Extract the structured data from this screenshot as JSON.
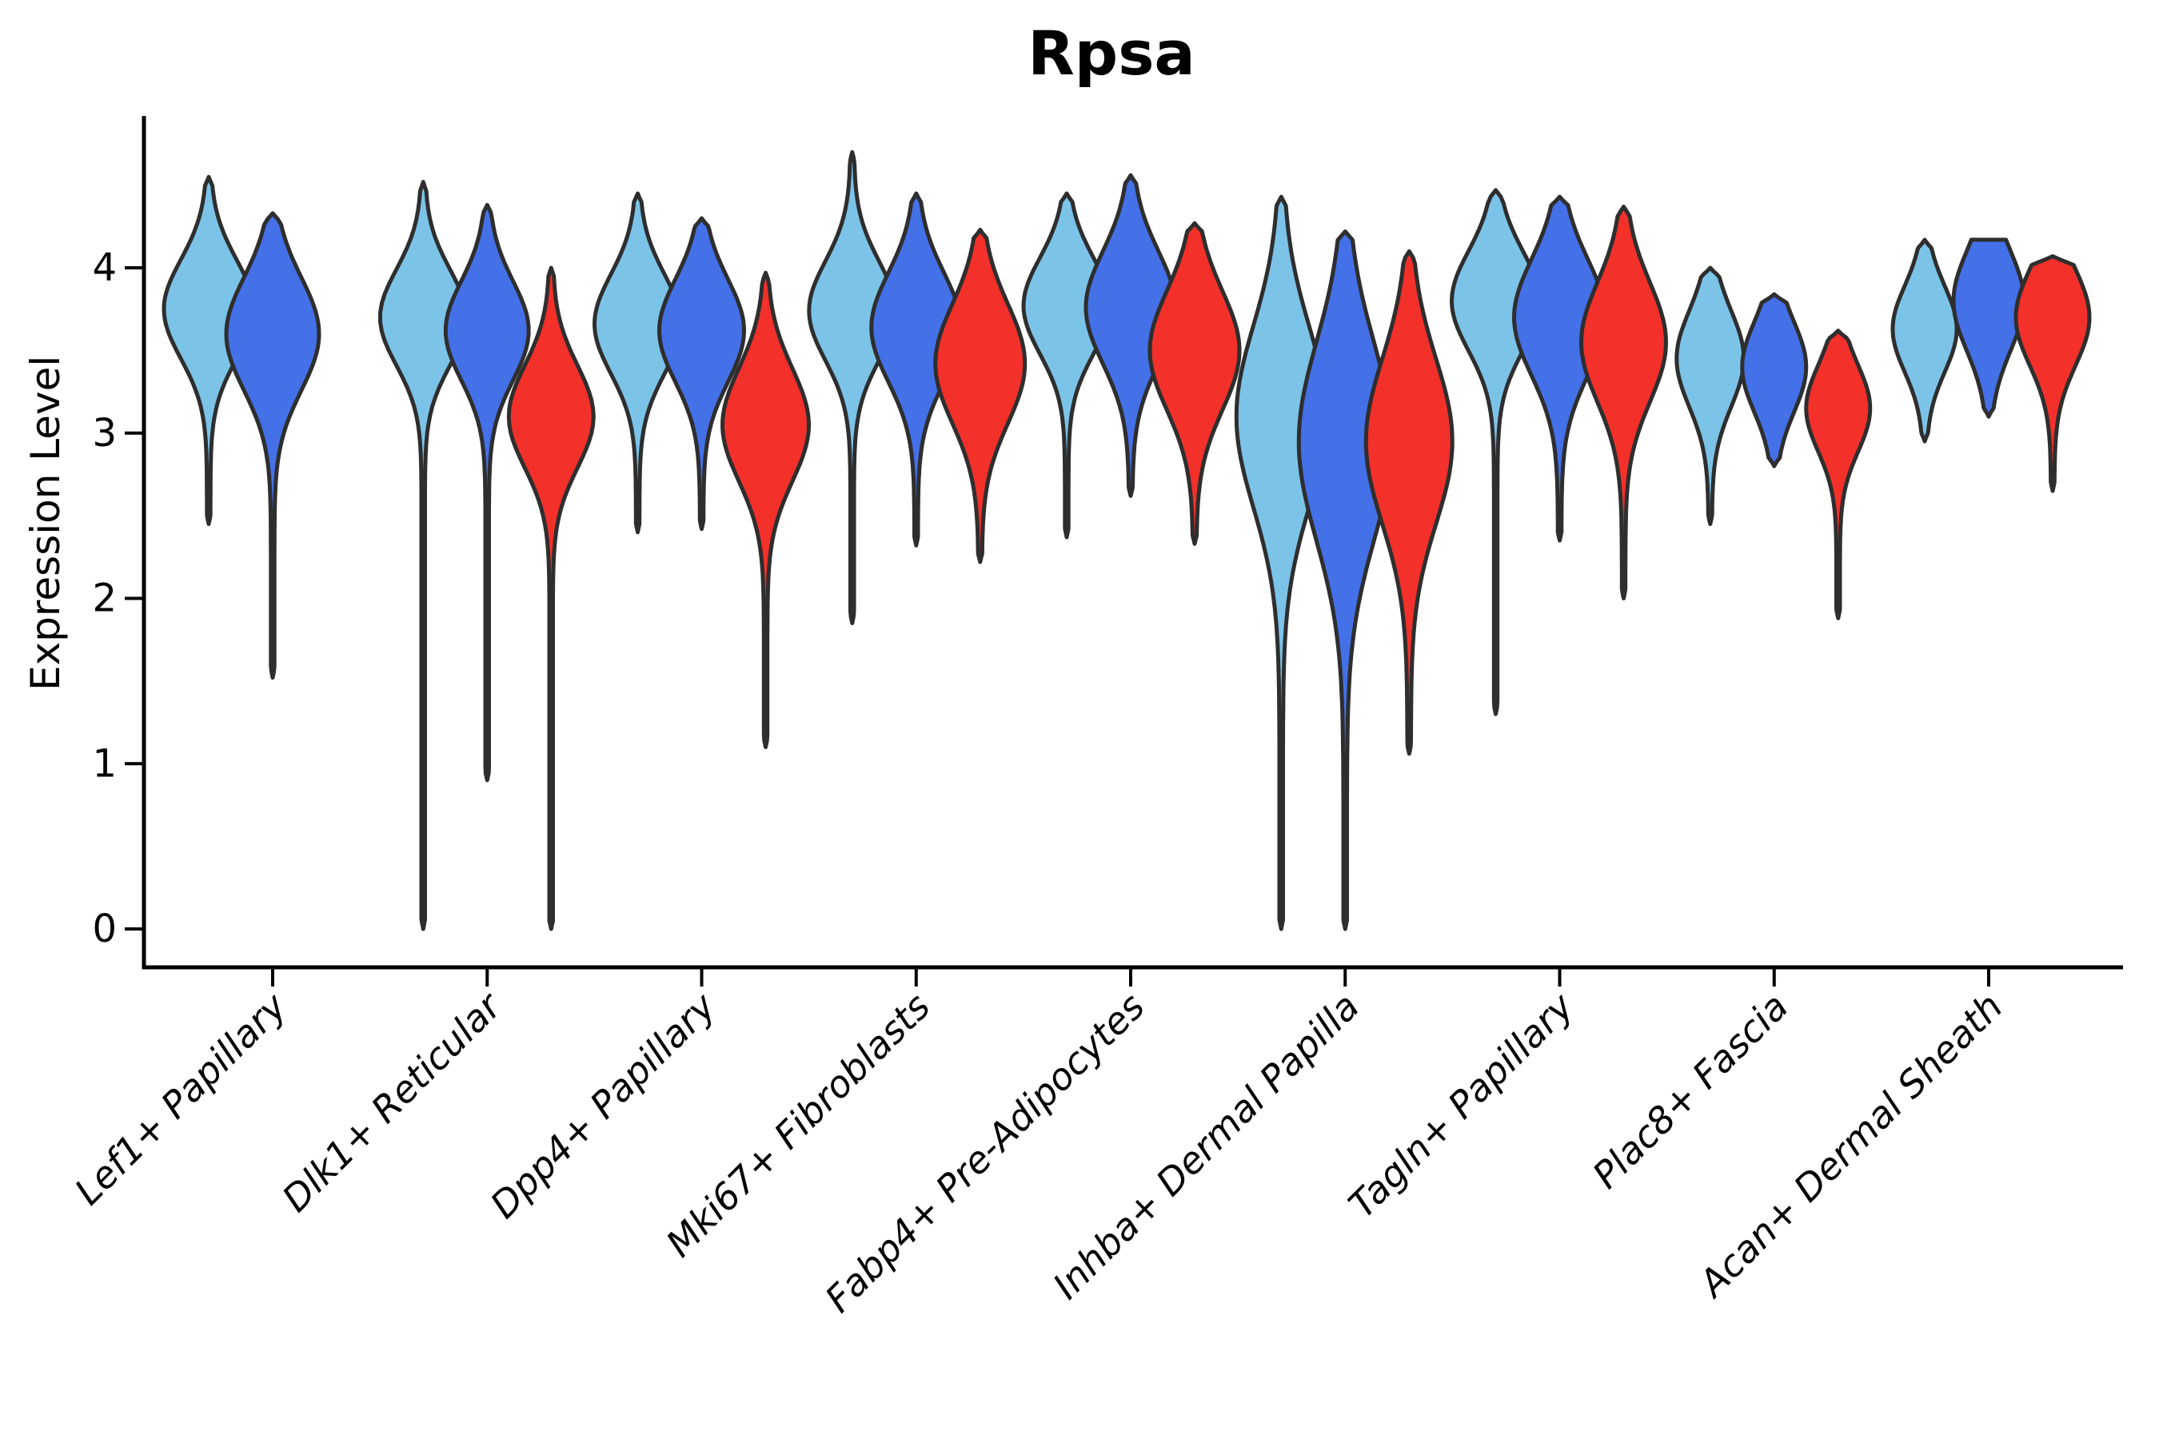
{
  "figure": {
    "title": "Rpsa",
    "ylabel": "Expression Level"
  },
  "chart_data": {
    "type": "violin",
    "title": "Rpsa",
    "xlabel": "",
    "ylabel": "Expression Level",
    "yticks": [
      0,
      1,
      2,
      3,
      4
    ],
    "ylim": [
      -0.25,
      4.92
    ],
    "grid": false,
    "legend_position": "none",
    "categories": [
      "Lef1+ Papillary",
      "Dlk1+ Reticular",
      "Dpp4+ Papillary",
      "Mki67+ Fibroblasts",
      "Fabp4+ Pre-Adipocytes",
      "Inhba+ Dermal Papilla",
      "Tagln+ Papillary",
      "Plac8+ Fascia",
      "Acan+ Dermal Sheath"
    ],
    "splits": [
      {
        "label": "light-blue",
        "color": "#7CC3E8"
      },
      {
        "label": "royal-blue",
        "color": "#4470E8"
      },
      {
        "label": "red",
        "color": "#F3302A"
      }
    ],
    "outline_color": "#2E2E2E",
    "axis_color": "#000000",
    "violins": [
      {
        "category_index": 0,
        "category": "Lef1+ Papillary",
        "split_index": 0,
        "split": "light-blue",
        "lo": 2.45,
        "hi": 4.55,
        "mode": 3.75,
        "sigma": 0.3,
        "w": 56
      },
      {
        "category_index": 0,
        "category": "Lef1+ Papillary",
        "split_index": 1,
        "split": "royal-blue",
        "lo": 1.52,
        "hi": 4.33,
        "mode": 3.6,
        "sigma": 0.34,
        "w": 58
      },
      {
        "category_index": 1,
        "category": "Dlk1+ Reticular",
        "split_index": 0,
        "split": "light-blue",
        "lo": 0.0,
        "hi": 4.52,
        "mode": 3.7,
        "sigma": 0.29,
        "w": 54
      },
      {
        "category_index": 1,
        "category": "Dlk1+ Reticular",
        "split_index": 1,
        "split": "royal-blue",
        "lo": 0.9,
        "hi": 4.38,
        "mode": 3.62,
        "sigma": 0.3,
        "w": 52
      },
      {
        "category_index": 1,
        "category": "Dlk1+ Reticular",
        "split_index": 2,
        "split": "red",
        "lo": 0.0,
        "hi": 4.0,
        "mode": 3.1,
        "sigma": 0.31,
        "w": 53
      },
      {
        "category_index": 2,
        "category": "Dpp4+ Papillary",
        "split_index": 0,
        "split": "light-blue",
        "lo": 2.4,
        "hi": 4.45,
        "mode": 3.66,
        "sigma": 0.3,
        "w": 54
      },
      {
        "category_index": 2,
        "category": "Dpp4+ Papillary",
        "split_index": 1,
        "split": "royal-blue",
        "lo": 2.42,
        "hi": 4.3,
        "mode": 3.62,
        "sigma": 0.31,
        "w": 53
      },
      {
        "category_index": 2,
        "category": "Dpp4+ Papillary",
        "split_index": 2,
        "split": "red",
        "lo": 1.1,
        "hi": 3.97,
        "mode": 3.05,
        "sigma": 0.34,
        "w": 54
      },
      {
        "category_index": 3,
        "category": "Mki67+ Fibroblasts",
        "split_index": 0,
        "split": "light-blue",
        "lo": 1.85,
        "hi": 4.7,
        "mode": 3.74,
        "sigma": 0.3,
        "w": 54
      },
      {
        "category_index": 3,
        "category": "Mki67+ Fibroblasts",
        "split_index": 1,
        "split": "royal-blue",
        "lo": 2.32,
        "hi": 4.45,
        "mode": 3.64,
        "sigma": 0.33,
        "w": 56
      },
      {
        "category_index": 3,
        "category": "Mki67+ Fibroblasts",
        "split_index": 2,
        "split": "red",
        "lo": 2.22,
        "hi": 4.23,
        "mode": 3.42,
        "sigma": 0.36,
        "w": 56
      },
      {
        "category_index": 4,
        "category": "Fabp4+ Pre-Adipocytes",
        "split_index": 0,
        "split": "light-blue",
        "lo": 2.37,
        "hi": 4.45,
        "mode": 3.77,
        "sigma": 0.29,
        "w": 54
      },
      {
        "category_index": 4,
        "category": "Fabp4+ Pre-Adipocytes",
        "split_index": 1,
        "split": "royal-blue",
        "lo": 2.62,
        "hi": 4.56,
        "mode": 3.76,
        "sigma": 0.34,
        "w": 56
      },
      {
        "category_index": 4,
        "category": "Fabp4+ Pre-Adipocytes",
        "split_index": 2,
        "split": "red",
        "lo": 2.33,
        "hi": 4.27,
        "mode": 3.5,
        "sigma": 0.36,
        "w": 56
      },
      {
        "category_index": 5,
        "category": "Inhba+ Dermal Papilla",
        "split_index": 0,
        "split": "light-blue",
        "lo": 0.0,
        "hi": 4.43,
        "mode": 3.1,
        "sigma": 0.55,
        "w": 56
      },
      {
        "category_index": 5,
        "category": "Inhba+ Dermal Papilla",
        "split_index": 1,
        "split": "royal-blue",
        "lo": 0.0,
        "hi": 4.22,
        "mode": 2.95,
        "sigma": 0.6,
        "w": 58
      },
      {
        "category_index": 5,
        "category": "Inhba+ Dermal Papilla",
        "split_index": 2,
        "split": "red",
        "lo": 1.06,
        "hi": 4.1,
        "mode": 2.95,
        "sigma": 0.5,
        "w": 54
      },
      {
        "category_index": 6,
        "category": "Tagln+ Papillary",
        "split_index": 0,
        "split": "light-blue",
        "lo": 1.3,
        "hi": 4.47,
        "mode": 3.8,
        "sigma": 0.3,
        "w": 55
      },
      {
        "category_index": 6,
        "category": "Tagln+ Papillary",
        "split_index": 1,
        "split": "royal-blue",
        "lo": 2.35,
        "hi": 4.43,
        "mode": 3.7,
        "sigma": 0.35,
        "w": 57
      },
      {
        "category_index": 6,
        "category": "Tagln+ Papillary",
        "split_index": 2,
        "split": "red",
        "lo": 2.0,
        "hi": 4.37,
        "mode": 3.55,
        "sigma": 0.36,
        "w": 53
      },
      {
        "category_index": 7,
        "category": "Plac8+ Fascia",
        "split_index": 0,
        "split": "light-blue",
        "lo": 2.45,
        "hi": 4.0,
        "mode": 3.45,
        "sigma": 0.29,
        "w": 42
      },
      {
        "category_index": 7,
        "category": "Plac8+ Fascia",
        "split_index": 1,
        "split": "royal-blue",
        "lo": 2.8,
        "hi": 3.84,
        "mode": 3.4,
        "sigma": 0.27,
        "w": 40
      },
      {
        "category_index": 7,
        "category": "Plac8+ Fascia",
        "split_index": 2,
        "split": "red",
        "lo": 1.88,
        "hi": 3.62,
        "mode": 3.15,
        "sigma": 0.26,
        "w": 40
      },
      {
        "category_index": 8,
        "category": "Acan+ Dermal Sheath",
        "split_index": 0,
        "split": "light-blue",
        "lo": 2.95,
        "hi": 4.17,
        "mode": 3.63,
        "sigma": 0.26,
        "w": 40
      },
      {
        "category_index": 8,
        "category": "Acan+ Dermal Sheath",
        "split_index": 1,
        "split": "royal-blue",
        "lo": 3.1,
        "hi": 4.17,
        "mode": 3.8,
        "sigma": 0.3,
        "w": 44,
        "flat_top": true
      },
      {
        "category_index": 8,
        "category": "Acan+ Dermal Sheath",
        "split_index": 2,
        "split": "red",
        "lo": 2.65,
        "hi": 4.07,
        "mode": 3.7,
        "sigma": 0.29,
        "w": 46
      }
    ]
  }
}
